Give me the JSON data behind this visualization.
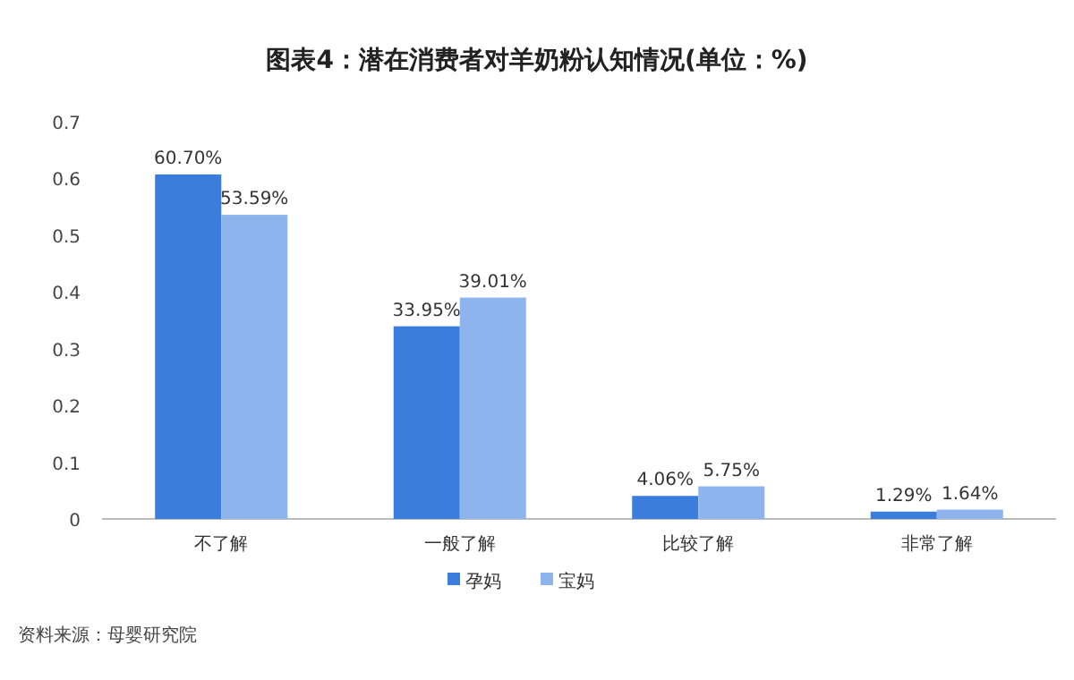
{
  "chart_data": {
    "type": "bar",
    "title": "图表4：潜在消费者对羊奶粉认知情况(单位：%)",
    "categories": [
      "不了解",
      "一般了解",
      "比较了解",
      "非常了解"
    ],
    "series": [
      {
        "name": "孕妈",
        "color": "#3b7ddd",
        "values": [
          0.607,
          0.3395,
          0.0406,
          0.0129
        ],
        "value_labels": [
          "60.70%",
          "33.95%",
          "4.06%",
          "1.29%"
        ]
      },
      {
        "name": "宝妈",
        "color": "#8db4ec",
        "values": [
          0.5359,
          0.3901,
          0.0575,
          0.0164
        ],
        "value_labels": [
          "53.59%",
          "39.01%",
          "5.75%",
          "1.64%"
        ]
      }
    ],
    "ylim": [
      0,
      0.7
    ],
    "yticks": [
      0,
      0.1,
      0.2,
      0.3,
      0.4,
      0.5,
      0.6,
      0.7
    ],
    "legend": "bottom",
    "grid": false,
    "annotations": [
      "资料来源：母婴研究院"
    ]
  }
}
